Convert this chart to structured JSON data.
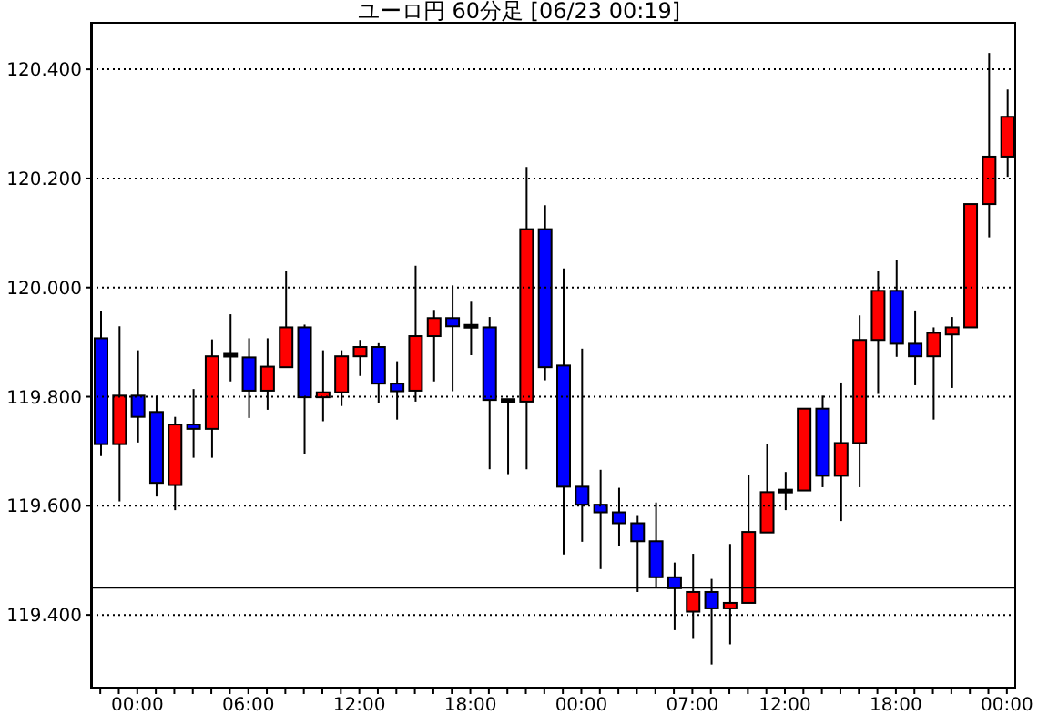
{
  "chart_data": {
    "type": "candlestick",
    "title": "ユーロ円 60分足 [06/23 00:19]",
    "categories": [
      null,
      null,
      "00:00",
      null,
      null,
      null,
      null,
      null,
      "06:00",
      null,
      null,
      null,
      null,
      null,
      "12:00",
      null,
      null,
      null,
      null,
      null,
      "18:00",
      null,
      null,
      null,
      null,
      null,
      "00:00",
      null,
      null,
      null,
      null,
      null,
      "07:00",
      null,
      null,
      null,
      null,
      "12:00",
      null,
      null,
      null,
      null,
      null,
      "18:00",
      null,
      null,
      null,
      null,
      null,
      "00:00"
    ],
    "ohlc": [
      [
        119.907,
        119.957,
        119.691,
        119.713
      ],
      [
        119.713,
        119.929,
        119.608,
        119.802
      ],
      [
        119.802,
        119.885,
        119.716,
        119.763
      ],
      [
        119.772,
        119.802,
        119.617,
        119.642
      ],
      [
        119.638,
        119.763,
        119.592,
        119.749
      ],
      [
        119.749,
        119.814,
        119.688,
        119.741
      ],
      [
        119.741,
        119.905,
        119.688,
        119.874
      ],
      [
        119.876,
        119.951,
        119.828,
        119.876
      ],
      [
        119.872,
        119.907,
        119.761,
        119.811
      ],
      [
        119.811,
        119.907,
        119.776,
        119.855
      ],
      [
        119.854,
        120.031,
        119.854,
        119.927
      ],
      [
        119.927,
        119.932,
        119.695,
        119.799
      ],
      [
        119.799,
        119.885,
        119.755,
        119.808
      ],
      [
        119.808,
        119.885,
        119.783,
        119.874
      ],
      [
        119.874,
        119.904,
        119.838,
        119.891
      ],
      [
        119.891,
        119.898,
        119.788,
        119.824
      ],
      [
        119.824,
        119.865,
        119.758,
        119.81
      ],
      [
        119.811,
        120.04,
        119.791,
        119.911
      ],
      [
        119.911,
        119.959,
        119.828,
        119.944
      ],
      [
        119.944,
        120.004,
        119.81,
        119.929
      ],
      [
        119.929,
        119.974,
        119.876,
        119.929
      ],
      [
        119.927,
        119.946,
        119.667,
        119.794
      ],
      [
        119.793,
        119.793,
        119.658,
        119.793
      ],
      [
        119.791,
        120.221,
        119.667,
        120.107
      ],
      [
        120.107,
        120.151,
        119.83,
        119.854
      ],
      [
        119.857,
        120.035,
        119.511,
        119.635
      ],
      [
        119.635,
        119.888,
        119.534,
        119.602
      ],
      [
        119.602,
        119.666,
        119.484,
        119.588
      ],
      [
        119.588,
        119.633,
        119.527,
        119.568
      ],
      [
        119.568,
        119.583,
        119.442,
        119.535
      ],
      [
        119.535,
        119.606,
        119.45,
        119.469
      ],
      [
        119.469,
        119.496,
        119.372,
        119.449
      ],
      [
        119.406,
        119.512,
        119.356,
        119.442
      ],
      [
        119.442,
        119.466,
        119.309,
        119.412
      ],
      [
        119.412,
        119.53,
        119.346,
        119.422
      ],
      [
        119.422,
        119.656,
        119.422,
        119.552
      ],
      [
        119.551,
        119.713,
        119.551,
        119.625
      ],
      [
        119.627,
        119.662,
        119.592,
        119.627
      ],
      [
        119.628,
        119.778,
        119.628,
        119.778
      ],
      [
        119.778,
        119.802,
        119.634,
        119.655
      ],
      [
        119.655,
        119.826,
        119.572,
        119.715
      ],
      [
        119.715,
        119.949,
        119.634,
        119.904
      ],
      [
        119.904,
        120.031,
        119.805,
        119.994
      ],
      [
        119.994,
        120.051,
        119.873,
        119.897
      ],
      [
        119.897,
        119.958,
        119.821,
        119.874
      ],
      [
        119.874,
        119.927,
        119.758,
        119.917
      ],
      [
        119.914,
        119.946,
        119.816,
        119.927
      ],
      [
        119.927,
        120.153,
        119.927,
        120.153
      ],
      [
        120.153,
        120.43,
        120.092,
        120.24
      ],
      [
        120.24,
        120.363,
        120.203,
        120.313
      ]
    ],
    "colors": [
      "#0000ff",
      "#ff0000",
      "#0000ff",
      "#0000ff",
      "#ff0000",
      "#0000ff",
      "#ff0000",
      "#000000",
      "#0000ff",
      "#ff0000",
      "#ff0000",
      "#0000ff",
      "#ff0000",
      "#ff0000",
      "#ff0000",
      "#0000ff",
      "#0000ff",
      "#ff0000",
      "#ff0000",
      "#0000ff",
      "#000000",
      "#0000ff",
      "#000000",
      "#ff0000",
      "#0000ff",
      "#0000ff",
      "#0000ff",
      "#0000ff",
      "#0000ff",
      "#0000ff",
      "#0000ff",
      "#0000ff",
      "#ff0000",
      "#0000ff",
      "#ff0000",
      "#ff0000",
      "#ff0000",
      "#000000",
      "#ff0000",
      "#0000ff",
      "#ff0000",
      "#ff0000",
      "#ff0000",
      "#0000ff",
      "#0000ff",
      "#ff0000",
      "#ff0000",
      "#ff0000",
      "#ff0000",
      "#ff0000"
    ],
    "ylim": [
      119.265,
      120.487
    ],
    "yticks": [
      {
        "value": 119.4,
        "label": "119.400"
      },
      {
        "value": 119.6,
        "label": "119.600"
      },
      {
        "value": 119.8,
        "label": "119.800"
      },
      {
        "value": 120.0,
        "label": "120.000"
      },
      {
        "value": 120.2,
        "label": "120.200"
      },
      {
        "value": 120.4,
        "label": "120.400"
      }
    ],
    "grid": "y",
    "ref_lines": [
      {
        "axis": "y",
        "value": 119.45,
        "color": "#000000"
      }
    ]
  }
}
